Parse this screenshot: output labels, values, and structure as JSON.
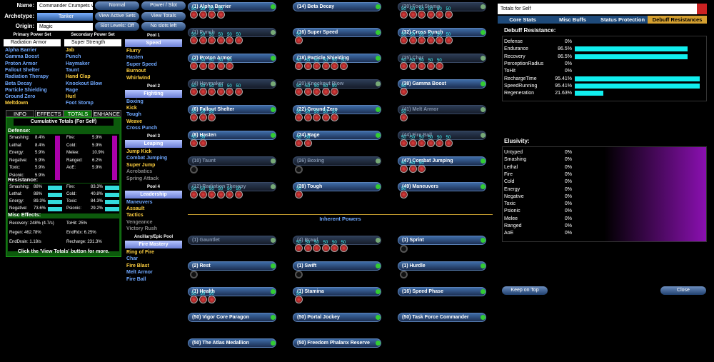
{
  "header": {
    "name_label": "Name:",
    "name": "Commander Crumpets v.20",
    "archetype_label": "Archetype:",
    "archetype": "Tanker",
    "origin_label": "Origin:",
    "origin": "Magic",
    "buttons": [
      "Normal",
      "Power / Slot",
      "View Active Sets",
      "View Totals",
      "Slot Levels: Off",
      "No slots left"
    ]
  },
  "primary": {
    "title": "Primary Power Set",
    "set": "Radiation Armor",
    "powers": [
      {
        "name": "Alpha Barrier",
        "color": "#6fa8ff"
      },
      {
        "name": "Gamma Boost",
        "color": "#6fa8ff"
      },
      {
        "name": "Proton Armor",
        "color": "#6fa8ff"
      },
      {
        "name": "Fallout Shelter",
        "color": "#6fa8ff"
      },
      {
        "name": "Radiation Therapy",
        "color": "#6fa8ff"
      },
      {
        "name": "Beta Decay",
        "color": "#6fa8ff"
      },
      {
        "name": "Particle Shielding",
        "color": "#6fa8ff"
      },
      {
        "name": "Ground Zero",
        "color": "#6fa8ff"
      },
      {
        "name": "Meltdown",
        "color": "#ffd040"
      }
    ]
  },
  "secondary": {
    "title": "Secondary Power Set",
    "set": "Super Strength",
    "powers": [
      {
        "name": "Jab",
        "color": "#ffd040"
      },
      {
        "name": "Punch",
        "color": "#6fa8ff"
      },
      {
        "name": "Haymaker",
        "color": "#6fa8ff"
      },
      {
        "name": "Taunt",
        "color": "#6fa8ff"
      },
      {
        "name": "Hand Clap",
        "color": "#ffd040"
      },
      {
        "name": "Knockout Blow",
        "color": "#6fa8ff"
      },
      {
        "name": "Rage",
        "color": "#6fa8ff"
      },
      {
        "name": "Hurl",
        "color": "#ffd040"
      },
      {
        "name": "Foot Stomp",
        "color": "#6fa8ff"
      }
    ]
  },
  "pools": [
    {
      "title": "Pool 1",
      "set": "Speed",
      "powers": [
        {
          "name": "Flurry",
          "color": "#ffd040"
        },
        {
          "name": "Hasten",
          "color": "#6fa8ff"
        },
        {
          "name": "Super Speed",
          "color": "#6fa8ff"
        },
        {
          "name": "Burnout",
          "color": "#ffd040"
        },
        {
          "name": "Whirlwind",
          "color": "#ffd040"
        }
      ]
    },
    {
      "title": "Pool 2",
      "set": "Fighting",
      "powers": [
        {
          "name": "Boxing",
          "color": "#6fa8ff"
        },
        {
          "name": "Kick",
          "color": "#ffd040"
        },
        {
          "name": "Tough",
          "color": "#6fa8ff"
        },
        {
          "name": "Weave",
          "color": "#ffd040"
        },
        {
          "name": "Cross Punch",
          "color": "#6fa8ff"
        }
      ]
    },
    {
      "title": "Pool 3",
      "set": "Leaping",
      "powers": [
        {
          "name": "Jump Kick",
          "color": "#ffd040"
        },
        {
          "name": "Combat Jumping",
          "color": "#6fa8ff"
        },
        {
          "name": "Super Jump",
          "color": "#ffd040"
        },
        {
          "name": "Acrobatics",
          "color": "#888888"
        },
        {
          "name": "Spring Attack",
          "color": "#888888"
        }
      ]
    },
    {
      "title": "Pool 4",
      "set": "Leadership",
      "powers": [
        {
          "name": "Maneuvers",
          "color": "#6fa8ff"
        },
        {
          "name": "Assault",
          "color": "#ffd040"
        },
        {
          "name": "Tactics",
          "color": "#ffd040"
        },
        {
          "name": "Vengeance",
          "color": "#888888"
        },
        {
          "name": "Victory Rush",
          "color": "#888888"
        }
      ]
    },
    {
      "title": "Ancillary/Epic Pool",
      "set": "Fire Mastery",
      "powers": [
        {
          "name": "Ring of Fire",
          "color": "#ffd040"
        },
        {
          "name": "Char",
          "color": "#6fa8ff"
        },
        {
          "name": "Fire Blast",
          "color": "#ffd040"
        },
        {
          "name": "Melt Armor",
          "color": "#6fa8ff"
        },
        {
          "name": "Fire Ball",
          "color": "#6fa8ff"
        }
      ]
    }
  ],
  "tabs": [
    "INFO",
    "EFFECTS",
    "TOTALS",
    "ENHANCE"
  ],
  "totals": {
    "title": "Cumulative Totals (For Self)",
    "defense_title": "Defense:",
    "defense": [
      [
        "Smashing:",
        "8.4%"
      ],
      [
        "Fire:",
        "5.9%"
      ],
      [
        "Lethal:",
        "8.4%"
      ],
      [
        "Cold:",
        "5.9%"
      ],
      [
        "Energy:",
        "5.9%"
      ],
      [
        "Melee:",
        "10.9%"
      ],
      [
        "Negative:",
        "5.9%"
      ],
      [
        "Ranged:",
        "6.2%"
      ],
      [
        "Toxic:",
        "5.9%"
      ],
      [
        "AoE:",
        "5.9%"
      ],
      [
        "Psionic:",
        "5.9%"
      ]
    ],
    "resistance_title": "Resistance:",
    "resistance": [
      [
        "Smashing:",
        "88%"
      ],
      [
        "Fire:",
        "83.3%"
      ],
      [
        "Lethal:",
        "88%"
      ],
      [
        "Cold:",
        "40.8%"
      ],
      [
        "Energy:",
        "89.3%"
      ],
      [
        "Toxic:",
        "84.3%"
      ],
      [
        "Negative:",
        "73.6%"
      ],
      [
        "Psionic:",
        "29.2%"
      ]
    ],
    "misc_title": "Misc Effects:",
    "misc": [
      "Recovery: 248% (4.7/s)",
      "ToHit: 25%",
      "Regen: 462.78%",
      "EndRdx: 6.25%",
      "EndDrain: 1.18/s",
      "Recharge: 231.3%"
    ],
    "footer": "Click the 'View Totals' button for more."
  },
  "build": [
    {
      "label": "(1) Alpha Barrier",
      "faded": false,
      "slots": [
        50,
        50,
        50,
        50
      ]
    },
    {
      "label": "(14) Beta Decay",
      "faded": false,
      "slots": []
    },
    {
      "label": "(30) Foot Stomp",
      "faded": true,
      "slots": [
        50,
        50,
        50,
        50,
        50,
        50
      ]
    },
    {
      "label": "(1) Punch",
      "faded": true,
      "slots": [
        50,
        50,
        50,
        50,
        50,
        50
      ]
    },
    {
      "label": "(16) Super Speed",
      "faded": false,
      "slots": [
        50
      ]
    },
    {
      "label": "(32) Cross Punch",
      "faded": false,
      "slots": [
        50,
        50,
        50,
        50,
        50,
        50
      ]
    },
    {
      "label": "(2) Proton Armor",
      "faded": false,
      "slots": [
        50,
        50,
        50,
        50,
        50
      ]
    },
    {
      "label": "(18) Particle Shielding",
      "faded": false,
      "slots": [
        50,
        50,
        50,
        50,
        50,
        50
      ]
    },
    {
      "label": "(35) Char",
      "faded": true,
      "slots": [
        50,
        50,
        50,
        50,
        50
      ]
    },
    {
      "label": "(4) Haymaker",
      "faded": true,
      "slots": [
        50,
        50,
        50,
        50,
        50,
        50
      ]
    },
    {
      "label": "(20) Knockout Blow",
      "faded": true,
      "slots": [
        50,
        50,
        50,
        50,
        50
      ]
    },
    {
      "label": "(38) Gamma Boost",
      "faded": false,
      "slots": [
        50
      ]
    },
    {
      "label": "(6) Fallout Shelter",
      "faded": false,
      "slots": [
        50,
        50,
        50
      ]
    },
    {
      "label": "(22) Ground Zero",
      "faded": false,
      "slots": [
        50,
        50,
        50,
        50,
        50
      ]
    },
    {
      "label": "(41) Melt Armor",
      "faded": true,
      "slots": [
        50
      ]
    },
    {
      "label": "(8) Hasten",
      "faded": false,
      "slots": [
        50,
        50
      ]
    },
    {
      "label": "(24) Rage",
      "faded": false,
      "slots": [
        50,
        50
      ]
    },
    {
      "label": "(44) Fire Ball",
      "faded": true,
      "slots": [
        50,
        50,
        50,
        50,
        50,
        50
      ]
    },
    {
      "label": "(10) Taunt",
      "faded": true,
      "slots": [],
      "empty_slot": true
    },
    {
      "label": "(26) Boxing",
      "faded": true,
      "slots": [],
      "empty_slot": true
    },
    {
      "label": "(47) Combat Jumping",
      "faded": false,
      "slots": [
        50,
        50,
        50
      ]
    },
    {
      "label": "(12) Radiation Therapy",
      "faded": true,
      "slots": [
        50,
        50,
        50,
        50,
        50,
        50
      ]
    },
    {
      "label": "(28) Tough",
      "faded": false,
      "slots": [
        50
      ]
    },
    {
      "label": "(49) Maneuvers",
      "faded": false,
      "slots": [
        50
      ]
    }
  ],
  "inherent_title": "Inherent Powers",
  "inherent": [
    {
      "label": "(1) Gauntlet",
      "faded": true,
      "slots": []
    },
    {
      "label": "(4) Brawl",
      "faded": true,
      "slots": [
        50,
        50,
        50,
        50,
        50,
        50
      ]
    },
    {
      "label": "(1) Sprint",
      "faded": false,
      "slots": [],
      "empty_slot": true
    },
    {
      "label": "(2) Rest",
      "faded": false,
      "slots": [],
      "empty_slot": true
    },
    {
      "label": "(1) Swift",
      "faded": false,
      "slots": [],
      "empty_slot": true
    },
    {
      "label": "(1) Hurdle",
      "faded": false,
      "slots": [],
      "empty_slot": true
    },
    {
      "label": "(1) Health",
      "faded": false,
      "slots": [
        50,
        50,
        50
      ]
    },
    {
      "label": "(1) Stamina",
      "faded": false,
      "slots": [
        50
      ]
    },
    {
      "label": "(16) Speed Phase",
      "faded": false,
      "slots": []
    },
    {
      "label": "(50) Vigor Core Paragon",
      "faded": false,
      "slots": []
    },
    {
      "label": "(50) Portal Jockey",
      "faded": false,
      "slots": []
    },
    {
      "label": "(50) Task Force Commander",
      "faded": false,
      "slots": []
    },
    {
      "label": "(50) The Atlas Medallion",
      "faded": false,
      "slots": []
    },
    {
      "label": "(50) Freedom Phalanx Reserve",
      "faded": false,
      "slots": []
    }
  ],
  "window": {
    "title": "Totals for Self",
    "tabs": [
      "Core Stats",
      "Misc Buffs",
      "Status Protection",
      "Debuff Resistances"
    ],
    "debuff_title": "Debuff Resistance:",
    "debuff": [
      {
        "name": "Defense",
        "value": 0,
        "label": "0%"
      },
      {
        "name": "Endurance",
        "value": 86.5,
        "label": "86.5%"
      },
      {
        "name": "Recovery",
        "value": 86.5,
        "label": "86.5%"
      },
      {
        "name": "PerceptionRadius",
        "value": 0,
        "label": "0%"
      },
      {
        "name": "ToHit",
        "value": 0,
        "label": "0%"
      },
      {
        "name": "RechargeTime",
        "value": 95.41,
        "label": "95.41%"
      },
      {
        "name": "SpeedRunning",
        "value": 95.41,
        "label": "95.41%"
      },
      {
        "name": "Regeneration",
        "value": 21.63,
        "label": "21.63%"
      }
    ],
    "elusivity_title": "Elusivity:",
    "elusivity": [
      {
        "name": "Untyped",
        "value": 0,
        "label": "0%"
      },
      {
        "name": "Smashing",
        "value": 0,
        "label": "0%"
      },
      {
        "name": "Lethal",
        "value": 0,
        "label": "0%"
      },
      {
        "name": "Fire",
        "value": 0,
        "label": "0%"
      },
      {
        "name": "Cold",
        "value": 0,
        "label": "0%"
      },
      {
        "name": "Energy",
        "value": 0,
        "label": "0%"
      },
      {
        "name": "Negative",
        "value": 0,
        "label": "0%"
      },
      {
        "name": "Toxic",
        "value": 0,
        "label": "0%"
      },
      {
        "name": "Psionic",
        "value": 0,
        "label": "0%"
      },
      {
        "name": "Melee",
        "value": 0,
        "label": "0%"
      },
      {
        "name": "Ranged",
        "value": 0,
        "label": "0%"
      },
      {
        "name": "AoE",
        "value": 0,
        "label": "0%"
      }
    ],
    "bar_max": 100,
    "buttons": [
      "Keep on Top",
      "Close"
    ]
  }
}
